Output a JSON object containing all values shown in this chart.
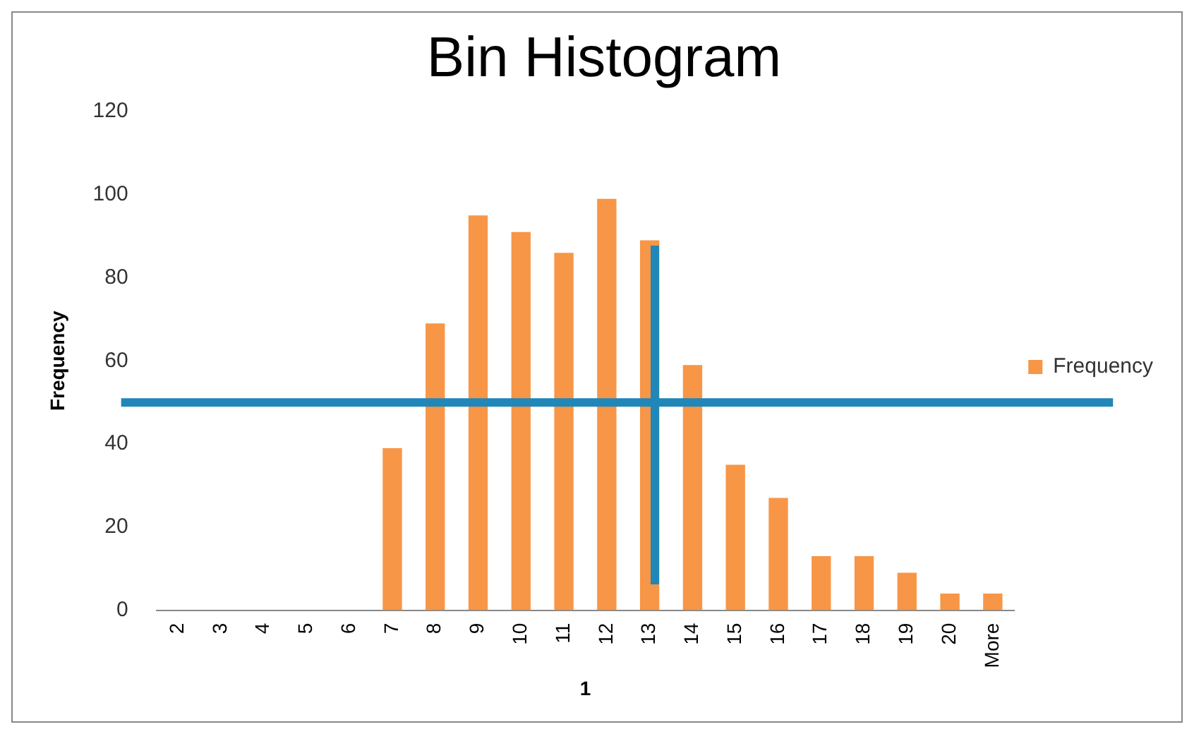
{
  "chart_data": {
    "type": "bar",
    "title": "Bin Histogram",
    "xlabel": "1",
    "ylabel": "Frequency",
    "categories": [
      "2",
      "3",
      "4",
      "5",
      "6",
      "7",
      "8",
      "9",
      "10",
      "11",
      "12",
      "13",
      "14",
      "15",
      "16",
      "17",
      "18",
      "19",
      "20",
      "More"
    ],
    "series": [
      {
        "name": "Frequency",
        "color": "#f79646",
        "values": [
          0,
          0,
          0,
          0,
          0,
          39,
          69,
          95,
          91,
          86,
          99,
          89,
          59,
          35,
          27,
          13,
          13,
          9,
          4,
          4
        ]
      }
    ],
    "ylim": [
      0,
      120
    ],
    "yticks": [
      0,
      20,
      40,
      60,
      80,
      100,
      120
    ],
    "grid": false,
    "legend": "right",
    "ref_lines": [
      {
        "axis": "y",
        "value": 50,
        "color": "#2186b8"
      }
    ]
  }
}
